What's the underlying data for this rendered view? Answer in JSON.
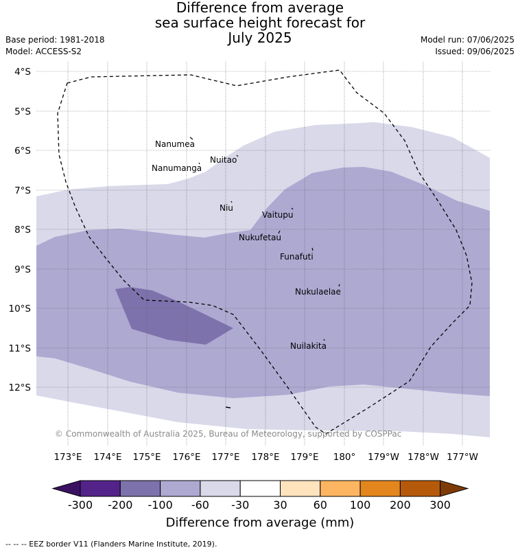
{
  "header": {
    "title_line1": "Difference from average",
    "title_line2": "sea surface height forecast for",
    "title_line3": "July 2025",
    "base_period": "Base period: 1981-2018",
    "model": "Model: ACCESS-S2",
    "model_run": "Model run: 07/06/2025",
    "issued": "Issued: 09/06/2025"
  },
  "map": {
    "lat_labels": [
      "4°S",
      "5°S",
      "6°S",
      "7°S",
      "8°S",
      "9°S",
      "10°S",
      "11°S",
      "12°S"
    ],
    "lon_labels": [
      "173°E",
      "174°E",
      "175°E",
      "176°E",
      "177°E",
      "178°E",
      "179°E",
      "180°",
      "179°W",
      "178°W",
      "177°W"
    ],
    "places": [
      {
        "name": "Nanumea"
      },
      {
        "name": "Nuitao"
      },
      {
        "name": "Nanumanga"
      },
      {
        "name": "Niu"
      },
      {
        "name": "Vaitupu"
      },
      {
        "name": "Nukufetau"
      },
      {
        "name": "Funafuti"
      },
      {
        "name": "Nukulaelae"
      },
      {
        "name": "Nuilakita"
      }
    ],
    "copyright": "© Commonwealth of Australia 2025, Bureau of Meteorology, supported by COSPPac"
  },
  "colorbar": {
    "ticks": [
      "-300",
      "-200",
      "-100",
      "-60",
      "-30",
      "30",
      "60",
      "100",
      "200",
      "300"
    ],
    "colors": [
      "#3b1262",
      "#54238a",
      "#7e72ac",
      "#aea9d1",
      "#d9d9ea",
      "#ffffff",
      "#ffe3bd",
      "#feb561",
      "#e3861d",
      "#b55a0a",
      "#7e3b08"
    ],
    "label": "Difference from average (mm)"
  },
  "footer": "-- -- -- EEZ border V11 (Flanders Marine Institute, 2019)."
}
